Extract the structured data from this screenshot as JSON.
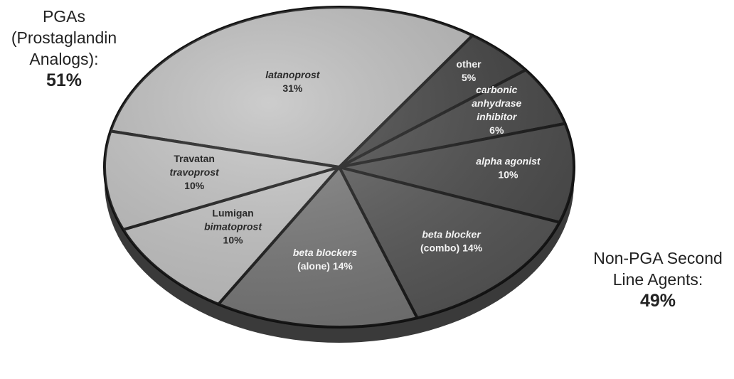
{
  "chart_data": {
    "type": "pie",
    "slices": [
      {
        "name": "latanoprost",
        "line1": "latanoprost",
        "line2": "",
        "line3": "",
        "pct_text": "31%",
        "value": 31,
        "color": "#bcbcbc",
        "light": true,
        "italic_lines": [
          true,
          false,
          false
        ]
      },
      {
        "name": "other",
        "line1": "other",
        "line2": "",
        "line3": "",
        "pct_text": "5%",
        "value": 5,
        "color": "#3d3d3d",
        "light": false,
        "italic_lines": [
          false,
          false,
          false
        ]
      },
      {
        "name": "carbonic anhydrase inhibitor",
        "line1": "carbonic",
        "line2": "anhydrase",
        "line3": "inhibitor",
        "pct_text": "6%",
        "value": 6,
        "color": "#454545",
        "light": false,
        "italic_lines": [
          true,
          true,
          true
        ]
      },
      {
        "name": "alpha agonist",
        "line1": "alpha agonist",
        "line2": "",
        "line3": "",
        "pct_text": "10%",
        "value": 10,
        "color": "#4a4a4a",
        "light": false,
        "italic_lines": [
          true,
          false,
          false
        ]
      },
      {
        "name": "beta blocker (combo)",
        "line1": "beta blocker",
        "line2": "(combo) 14%",
        "line3": "",
        "pct_text": "",
        "value": 14,
        "color": "#555555",
        "light": false,
        "italic_lines": [
          true,
          false,
          false
        ]
      },
      {
        "name": "beta blockers (alone)",
        "line1": "beta blockers",
        "line2": "(alone) 14%",
        "line3": "",
        "pct_text": "",
        "value": 14,
        "color": "#777777",
        "light": false,
        "italic_lines": [
          true,
          false,
          false
        ]
      },
      {
        "name": "Lumigan bimatoprost",
        "line1": "Lumigan",
        "line2": "bimatoprost",
        "line3": "",
        "pct_text": "10%",
        "value": 10,
        "color": "#c6c6c6",
        "light": true,
        "italic_lines": [
          false,
          true,
          false
        ]
      },
      {
        "name": "Travatan travoprost",
        "line1": "Travatan",
        "line2": "travoprost",
        "line3": "",
        "pct_text": "10%",
        "value": 10,
        "color": "#c2c2c2",
        "light": true,
        "italic_lines": [
          false,
          true,
          false
        ]
      }
    ],
    "groups": [
      {
        "name": "PGAs (Prostaglandin Analogs)",
        "value": 51
      },
      {
        "name": "Non-PGA Second Line Agents",
        "value": 49
      }
    ]
  },
  "labels": {
    "pga": {
      "line1": "PGAs",
      "line2": "(Prostaglandin",
      "line3": "Analogs):",
      "pct": "51%"
    },
    "nonpga": {
      "line1": "Non-PGA Second",
      "line2": "Line Agents:",
      "pct": "49%"
    }
  }
}
